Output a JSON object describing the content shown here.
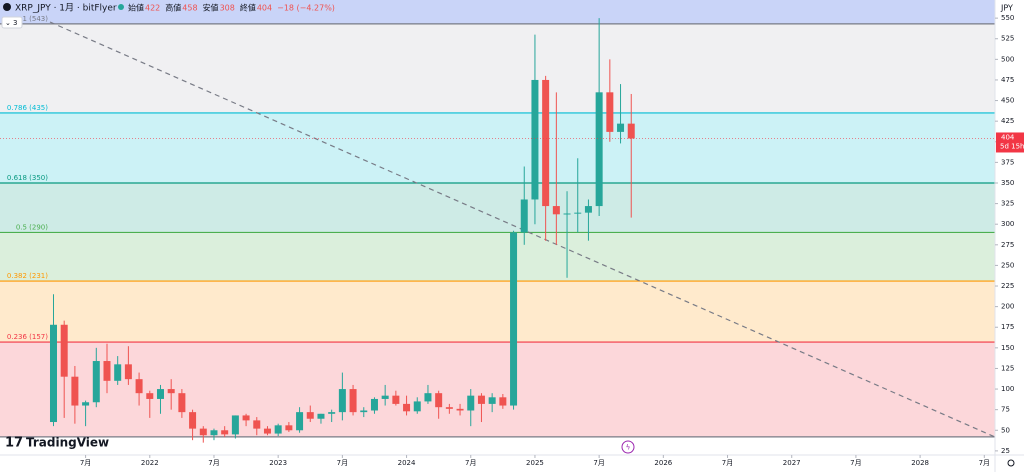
{
  "chart_data": {
    "type": "candlestick",
    "symbol": "XRP_JPY · 1月 · bitFlyer",
    "ohlc_header": [
      {
        "label": "始値",
        "value": 422
      },
      {
        "label": "高値",
        "value": 458
      },
      {
        "label": "安値",
        "value": 308
      },
      {
        "label": "終値",
        "value": 404
      }
    ],
    "change": "−18 (−4.27%)",
    "indicator_count": "3",
    "currency": "JPY",
    "last_price": 404,
    "countdown": "5d 15h",
    "last_price_color": "#f23645",
    "brand": "TradingView",
    "up_color": "#26a69a",
    "down_color": "#ef5350",
    "x": [
      "2021-04",
      "2021-05",
      "2021-06",
      "2021-07",
      "2021-08",
      "2021-09",
      "2021-10",
      "2021-11",
      "2021-12",
      "2022-01",
      "2022-02",
      "2022-03",
      "2022-04",
      "2022-05",
      "2022-06",
      "2022-07",
      "2022-08",
      "2022-09",
      "2022-10",
      "2022-11",
      "2022-12",
      "2023-01",
      "2023-02",
      "2023-03",
      "2023-04",
      "2023-05",
      "2023-06",
      "2023-07",
      "2023-08",
      "2023-09",
      "2023-10",
      "2023-11",
      "2023-12",
      "2024-01",
      "2024-02",
      "2024-03",
      "2024-04",
      "2024-05",
      "2024-06",
      "2024-07",
      "2024-08",
      "2024-09",
      "2024-10",
      "2024-11",
      "2024-12",
      "2025-01",
      "2025-02",
      "2025-03",
      "2025-04",
      "2025-05",
      "2025-06",
      "2025-07",
      "2025-08",
      "2025-09",
      "2025-10"
    ],
    "open": [
      60,
      178,
      115,
      80,
      84,
      134,
      110,
      130,
      112,
      95,
      88,
      100,
      95,
      72,
      52,
      44,
      50,
      45,
      68,
      62,
      52,
      46,
      56,
      50,
      72,
      64,
      70,
      72,
      100,
      72,
      74,
      88,
      92,
      82,
      73,
      85,
      95,
      78,
      76,
      74,
      92,
      82,
      90,
      80,
      290,
      330,
      475,
      322,
      312,
      313,
      314,
      322,
      460,
      412,
      422
    ],
    "high": [
      215,
      183,
      128,
      86,
      150,
      155,
      140,
      152,
      120,
      98,
      105,
      112,
      100,
      75,
      55,
      52,
      55,
      68,
      70,
      66,
      55,
      58,
      60,
      78,
      80,
      70,
      75,
      120,
      105,
      78,
      90,
      105,
      98,
      92,
      90,
      105,
      98,
      82,
      82,
      100,
      95,
      95,
      94,
      292,
      370,
      530,
      480,
      460,
      340,
      380,
      330,
      550,
      500,
      470,
      458
    ],
    "low": [
      55,
      65,
      58,
      55,
      78,
      95,
      105,
      105,
      80,
      65,
      70,
      75,
      65,
      38,
      35,
      38,
      42,
      40,
      55,
      44,
      44,
      43,
      48,
      47,
      60,
      58,
      60,
      62,
      68,
      66,
      70,
      80,
      80,
      68,
      70,
      82,
      64,
      70,
      68,
      55,
      60,
      72,
      76,
      75,
      275,
      300,
      280,
      275,
      235,
      290,
      280,
      310,
      400,
      398,
      308
    ],
    "close": [
      178,
      115,
      80,
      84,
      134,
      110,
      130,
      112,
      95,
      88,
      100,
      95,
      72,
      52,
      44,
      50,
      45,
      68,
      62,
      52,
      46,
      56,
      50,
      72,
      64,
      70,
      72,
      100,
      72,
      74,
      88,
      92,
      82,
      73,
      85,
      95,
      78,
      76,
      74,
      92,
      82,
      90,
      80,
      290,
      330,
      475,
      322,
      312,
      313,
      314,
      322,
      460,
      412,
      422,
      404
    ],
    "xlim": [
      "2020-11",
      "2028-08"
    ],
    "xticks": [
      {
        "value": "2021-07",
        "label": "7月"
      },
      {
        "value": "2022-01",
        "label": "2022"
      },
      {
        "value": "2022-07",
        "label": "7月"
      },
      {
        "value": "2023-01",
        "label": "2023"
      },
      {
        "value": "2023-07",
        "label": "7月"
      },
      {
        "value": "2024-01",
        "label": "2024"
      },
      {
        "value": "2024-07",
        "label": "7月"
      },
      {
        "value": "2025-01",
        "label": "2025"
      },
      {
        "value": "2025-07",
        "label": "7月"
      },
      {
        "value": "2026-01",
        "label": "2026"
      },
      {
        "value": "2026-07",
        "label": "7月"
      },
      {
        "value": "2027-01",
        "label": "2027"
      },
      {
        "value": "2027-07",
        "label": "7月"
      },
      {
        "value": "2028-01",
        "label": "2028"
      },
      {
        "value": "2028-07",
        "label": "7月"
      }
    ],
    "ylim": [
      20,
      572
    ],
    "yticks": [
      25,
      50,
      75,
      100,
      125,
      150,
      175,
      200,
      225,
      250,
      275,
      300,
      325,
      350,
      375,
      400,
      425,
      450,
      475,
      500,
      525,
      550
    ],
    "fib_levels": [
      {
        "label": "1 (543)",
        "value": 543,
        "color": "#787b86",
        "fill": "#b2b5be"
      },
      {
        "label": "0.786 (435)",
        "value": 435,
        "color": "#00bcd4",
        "fill": "#00bcd4"
      },
      {
        "label": "0.618 (350)",
        "value": 350,
        "color": "#089981",
        "fill": "#089981"
      },
      {
        "label": "0.5 (290)",
        "value": 290,
        "color": "#4caf50",
        "fill": "#4caf50"
      },
      {
        "label": "0.382 (231)",
        "value": 231,
        "color": "#ff9800",
        "fill": "#ff9800"
      },
      {
        "label": "0.236 (157)",
        "value": 157,
        "color": "#f23645",
        "fill": "#f23645"
      },
      {
        "value": 42,
        "color": "#787b86"
      }
    ]
  }
}
